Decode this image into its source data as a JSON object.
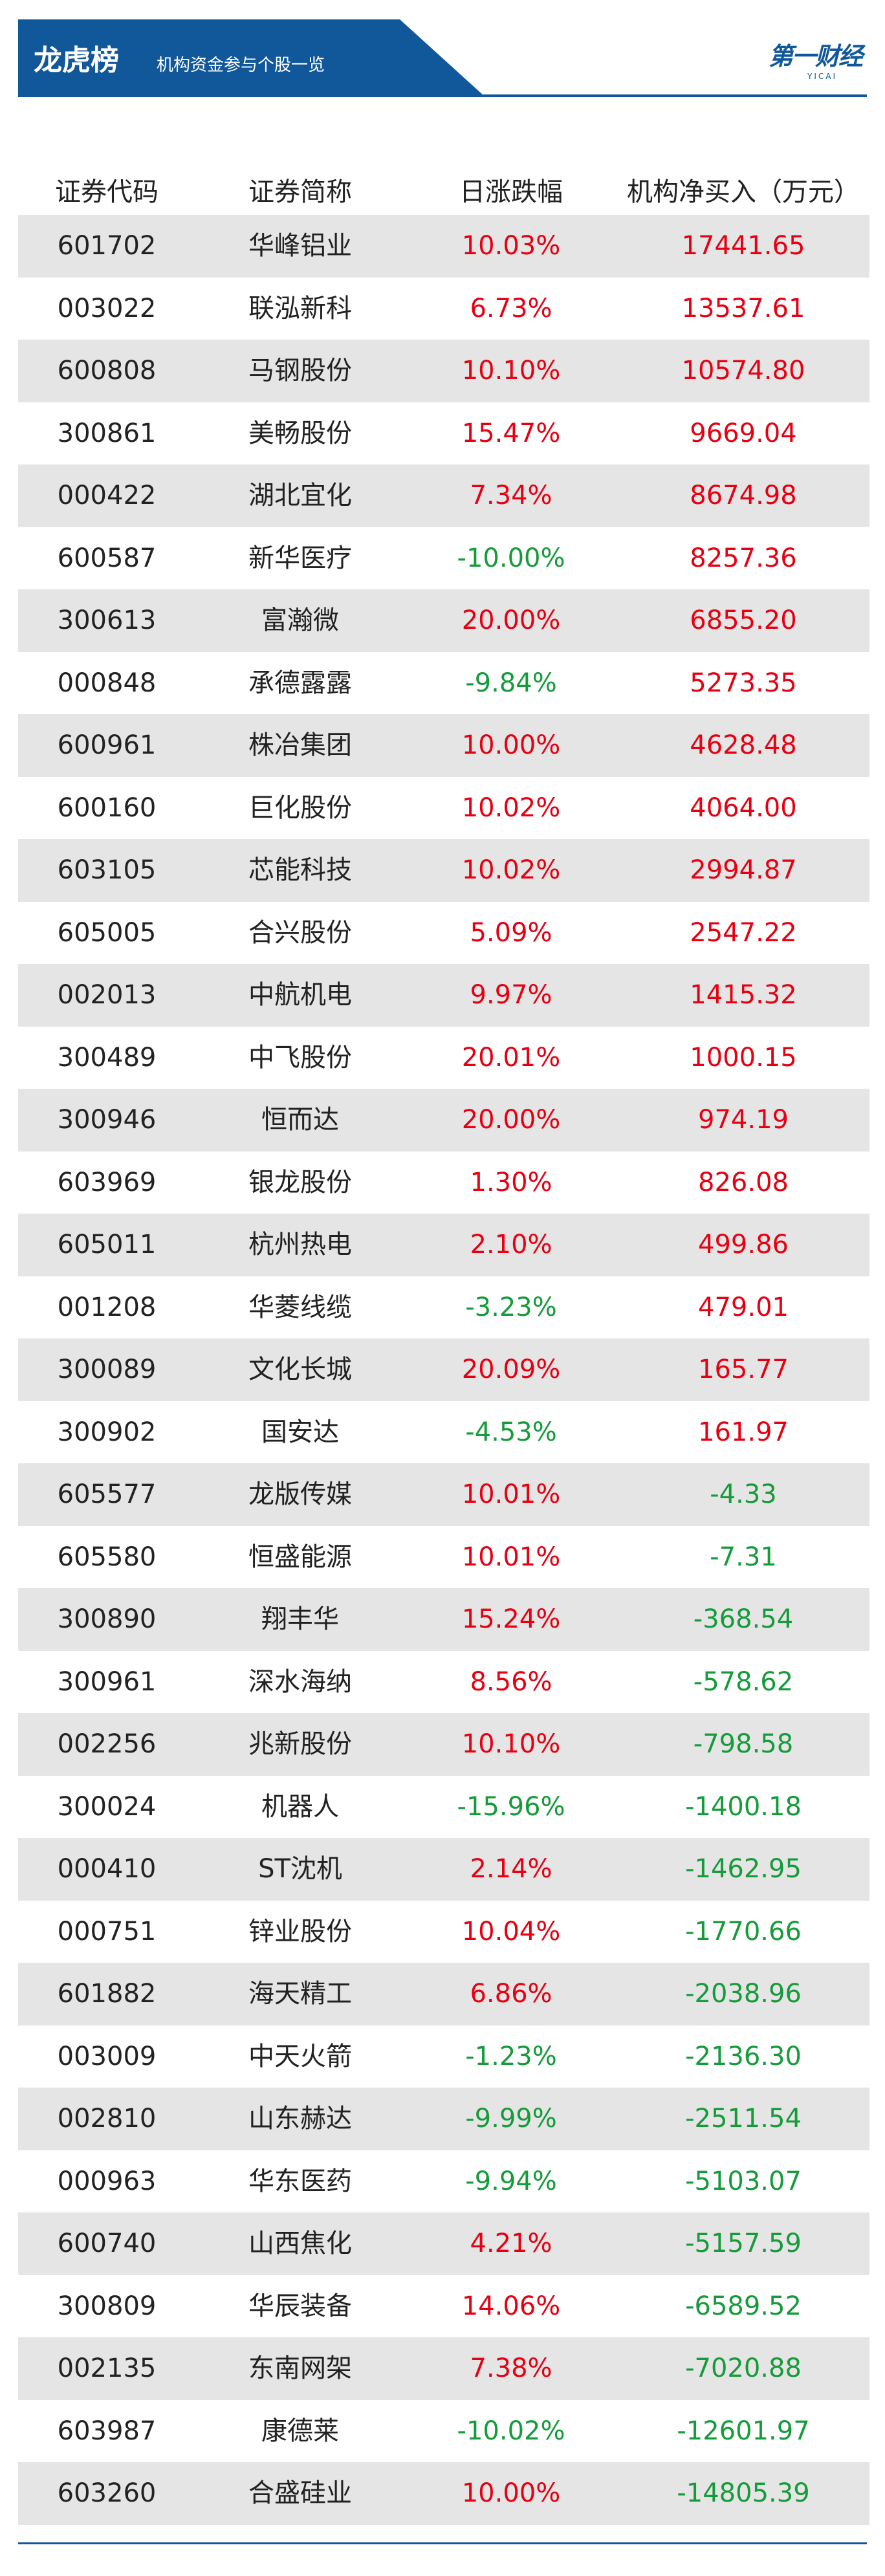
{
  "header": {
    "title": "龙虎榜",
    "subtitle": "机构资金参与个股一览",
    "logo_main": "第一财经",
    "logo_sub": "YICAI",
    "brand_color": "#11589a"
  },
  "table": {
    "columns": [
      "证券代码",
      "证券简称",
      "日涨跌幅",
      "机构净买入（万元）"
    ],
    "rows": [
      {
        "code": "601702",
        "name": "华峰铝业",
        "change": "10.03%",
        "net_buy": "17441.65"
      },
      {
        "code": "003022",
        "name": "联泓新科",
        "change": "6.73%",
        "net_buy": "13537.61"
      },
      {
        "code": "600808",
        "name": "马钢股份",
        "change": "10.10%",
        "net_buy": "10574.80"
      },
      {
        "code": "300861",
        "name": "美畅股份",
        "change": "15.47%",
        "net_buy": "9669.04"
      },
      {
        "code": "000422",
        "name": "湖北宜化",
        "change": "7.34%",
        "net_buy": "8674.98"
      },
      {
        "code": "600587",
        "name": "新华医疗",
        "change": "-10.00%",
        "net_buy": "8257.36"
      },
      {
        "code": "300613",
        "name": "富瀚微",
        "change": "20.00%",
        "net_buy": "6855.20"
      },
      {
        "code": "000848",
        "name": "承德露露",
        "change": "-9.84%",
        "net_buy": "5273.35"
      },
      {
        "code": "600961",
        "name": "株冶集团",
        "change": "10.00%",
        "net_buy": "4628.48"
      },
      {
        "code": "600160",
        "name": "巨化股份",
        "change": "10.02%",
        "net_buy": "4064.00"
      },
      {
        "code": "603105",
        "name": "芯能科技",
        "change": "10.02%",
        "net_buy": "2994.87"
      },
      {
        "code": "605005",
        "name": "合兴股份",
        "change": "5.09%",
        "net_buy": "2547.22"
      },
      {
        "code": "002013",
        "name": "中航机电",
        "change": "9.97%",
        "net_buy": "1415.32"
      },
      {
        "code": "300489",
        "name": "中飞股份",
        "change": "20.01%",
        "net_buy": "1000.15"
      },
      {
        "code": "300946",
        "name": "恒而达",
        "change": "20.00%",
        "net_buy": "974.19"
      },
      {
        "code": "603969",
        "name": "银龙股份",
        "change": "1.30%",
        "net_buy": "826.08"
      },
      {
        "code": "605011",
        "name": "杭州热电",
        "change": "2.10%",
        "net_buy": "499.86"
      },
      {
        "code": "001208",
        "name": "华菱线缆",
        "change": "-3.23%",
        "net_buy": "479.01"
      },
      {
        "code": "300089",
        "name": "文化长城",
        "change": "20.09%",
        "net_buy": "165.77"
      },
      {
        "code": "300902",
        "name": "国安达",
        "change": "-4.53%",
        "net_buy": "161.97"
      },
      {
        "code": "605577",
        "name": "龙版传媒",
        "change": "10.01%",
        "net_buy": "-4.33"
      },
      {
        "code": "605580",
        "name": "恒盛能源",
        "change": "10.01%",
        "net_buy": "-7.31"
      },
      {
        "code": "300890",
        "name": "翔丰华",
        "change": "15.24%",
        "net_buy": "-368.54"
      },
      {
        "code": "300961",
        "name": "深水海纳",
        "change": "8.56%",
        "net_buy": "-578.62"
      },
      {
        "code": "002256",
        "name": "兆新股份",
        "change": "10.10%",
        "net_buy": "-798.58"
      },
      {
        "code": "300024",
        "name": "机器人",
        "change": "-15.96%",
        "net_buy": "-1400.18"
      },
      {
        "code": "000410",
        "name": "ST沈机",
        "change": "2.14%",
        "net_buy": "-1462.95"
      },
      {
        "code": "000751",
        "name": "锌业股份",
        "change": "10.04%",
        "net_buy": "-1770.66"
      },
      {
        "code": "601882",
        "name": "海天精工",
        "change": "6.86%",
        "net_buy": "-2038.96"
      },
      {
        "code": "003009",
        "name": "中天火箭",
        "change": "-1.23%",
        "net_buy": "-2136.30"
      },
      {
        "code": "002810",
        "name": "山东赫达",
        "change": "-9.99%",
        "net_buy": "-2511.54"
      },
      {
        "code": "000963",
        "name": "华东医药",
        "change": "-9.94%",
        "net_buy": "-5103.07"
      },
      {
        "code": "600740",
        "name": "山西焦化",
        "change": "4.21%",
        "net_buy": "-5157.59"
      },
      {
        "code": "300809",
        "name": "华辰装备",
        "change": "14.06%",
        "net_buy": "-6589.52"
      },
      {
        "code": "002135",
        "name": "东南网架",
        "change": "7.38%",
        "net_buy": "-7020.88"
      },
      {
        "code": "603987",
        "name": "康德莱",
        "change": "-10.02%",
        "net_buy": "-12601.97"
      },
      {
        "code": "603260",
        "name": "合盛硅业",
        "change": "10.00%",
        "net_buy": "-14805.39"
      }
    ],
    "colors": {
      "positive": "#e60012",
      "negative": "#159b3a",
      "stripe": "#e5e5e5"
    }
  }
}
